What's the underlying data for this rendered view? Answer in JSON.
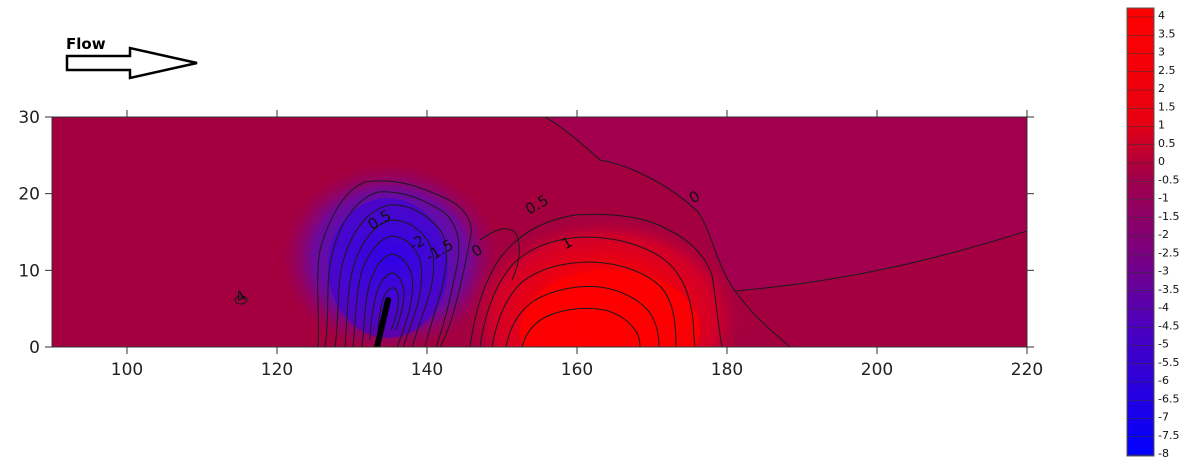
{
  "flow": {
    "label": "Flow"
  },
  "chart_data": {
    "type": "heatmap",
    "xlim": [
      90,
      220
    ],
    "ylim": [
      0,
      30
    ],
    "x_ticks": [
      100,
      120,
      140,
      160,
      180,
      200,
      220
    ],
    "y_ticks": [
      0,
      10,
      20,
      30
    ],
    "colorbar": {
      "min": -8,
      "max": 4,
      "step": 0.5,
      "colors": {
        "low": "#0000ff",
        "mid": "#a0004a",
        "high": "#ff0000"
      },
      "tick_labels": [
        "4",
        "3.5",
        "3",
        "2.5",
        "2",
        "1.5",
        "1",
        "0.5",
        "0",
        "-0.5",
        "-1",
        "-1.5",
        "-2",
        "-2.5",
        "-3",
        "-3.5",
        "-4",
        "-4.5",
        "-5",
        "-5.5",
        "-6",
        "-6.5",
        "-7",
        "-7.5",
        "-8"
      ]
    },
    "contour_labels": [
      {
        "text": "0.5",
        "x": 134,
        "y": 16
      },
      {
        "text": "-2",
        "x": 139,
        "y": 13
      },
      {
        "text": "-1.5",
        "x": 142,
        "y": 12
      },
      {
        "text": "0",
        "x": 147,
        "y": 12
      },
      {
        "text": "0.5",
        "x": 155,
        "y": 18
      },
      {
        "text": "1",
        "x": 159,
        "y": 13
      },
      {
        "text": "0",
        "x": 176,
        "y": 19
      },
      {
        "text": "4",
        "x": 115.5,
        "y": 6
      }
    ],
    "features": {
      "trough": {
        "x": 135,
        "y": 8.5,
        "value": -8
      },
      "peak": {
        "x": 166,
        "y": 2.5,
        "value": 4.2
      },
      "structure_line": {
        "x": [
          133.3,
          134.8
        ],
        "y": [
          0,
          6
        ]
      }
    }
  }
}
